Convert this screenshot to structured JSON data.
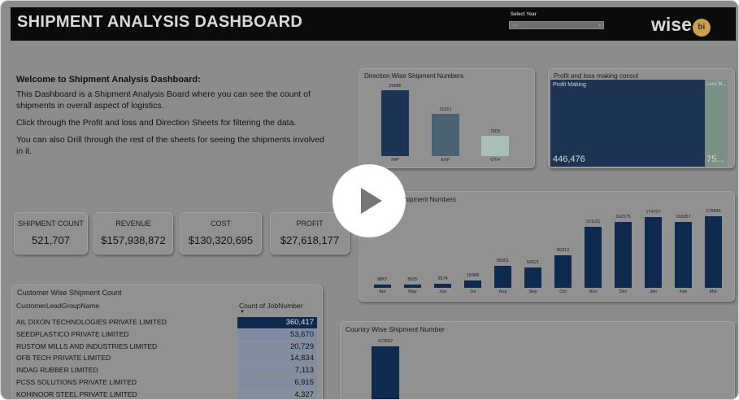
{
  "header": {
    "title": "SHIPMENT ANALYSIS DASHBOARD",
    "select_label": "Select Year",
    "select_value": "All",
    "logo_text": "wise",
    "logo_badge": "bi"
  },
  "welcome": {
    "heading": "Welcome to Shipment Analysis Dashboard:",
    "p1": "This Dashboard is a Shipment Analysis Board where you can see the count of shipments in overall aspect of logistics.",
    "p2": "Click through the Profit and loss and Direction Sheets for filtering the data.",
    "p3": "You can also Drill through the rest of the sheets for seeing the shipments involved in it."
  },
  "kpis": [
    {
      "label": "SHIPMENT COUNT",
      "value": "521,707"
    },
    {
      "label": "REVENUE",
      "value": "$157,938,872"
    },
    {
      "label": "COST",
      "value": "$130,320,695"
    },
    {
      "label": "PROFIT",
      "value": "$27,618,177"
    }
  ],
  "direction_chart": {
    "title": "Direction Wise Shipment Numbers",
    "color_imp": "#1d3454",
    "color_exp": "#4a6272",
    "color_oth": "#a9beb4"
  },
  "profit_panel": {
    "title": "Profit and loss making consol",
    "a_label": "Profit Making",
    "a_value": "446,476",
    "b_label": "Loss M...",
    "b_value": "75..."
  },
  "month_chart": {
    "title": "Month Wise Shipment Numbers",
    "bar_color": "#0e2a4f"
  },
  "country_chart": {
    "title": "Country Wise Shipment Number",
    "bar_color": "#0e2a4f"
  },
  "customer_table": {
    "title": "Customer Wise Shipment Count",
    "col1": "CustomerLeadGroupName",
    "col2": "Count of JobNumber",
    "rows": [
      {
        "name": "AIL DIXON TECHNOLOGIES PRIVATE LIMITED",
        "value": "360,417",
        "shade": 1.0
      },
      {
        "name": "SEEDPLASTICO PRIVATE LIMITED",
        "value": "53,670",
        "shade": 0.15
      },
      {
        "name": "RUSTOM MILLS AND INDUSTRIES LIMITED",
        "value": "20,729",
        "shade": 0.05
      },
      {
        "name": "OFB TECH PRIVATE LIMITED",
        "value": "14,834",
        "shade": 0.04
      },
      {
        "name": "INDAG RUBBER LIMITED",
        "value": "7,113",
        "shade": 0.02
      },
      {
        "name": "PCSS SOLUTIONS PRIVATE LIMITED",
        "value": "6,915",
        "shade": 0.02
      },
      {
        "name": "KOHINOOR STEEL PRIVATE LIMITED",
        "value": "4,327",
        "shade": 0.01
      }
    ]
  },
  "chart_data": [
    {
      "type": "bar",
      "title": "Direction Wise Shipment Numbers",
      "categories": [
        "IMP",
        "EXP",
        "OTH"
      ],
      "values": [
        25085,
        16201,
        7603
      ],
      "ylim": [
        0,
        25085
      ],
      "grid": false
    },
    {
      "type": "bar",
      "title": "Month Wise Shipment Numbers",
      "categories": [
        "Apr",
        "May",
        "Jun",
        "Jul",
        "Aug",
        "Sep",
        "Oct",
        "Nov",
        "Dec",
        "Jan",
        "Feb",
        "Mar"
      ],
      "values": [
        8867,
        8925,
        9574,
        18488,
        55051,
        50521,
        80212,
        151161,
        162575,
        174707,
        163057,
        176845
      ],
      "ylim": [
        0,
        176845
      ],
      "grid": false
    },
    {
      "type": "bar",
      "title": "Country Wise Shipment Number",
      "categories": [
        ""
      ],
      "values": [
        473597
      ],
      "grid": false
    }
  ]
}
